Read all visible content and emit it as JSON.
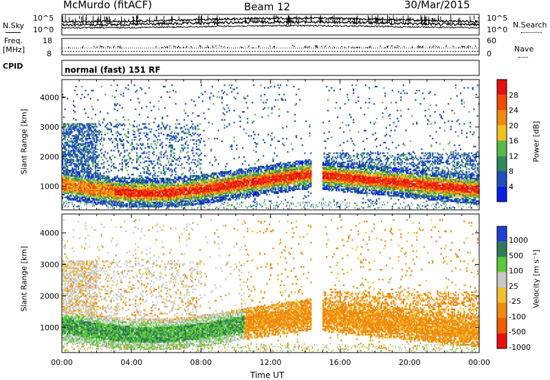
{
  "header": {
    "station": "McMurdo (fitACF)",
    "beam": "Beam 12",
    "date": "30/Mar/2015"
  },
  "top_panel": {
    "left_label_1": "N.Sky",
    "left_label_2": "Freq.",
    "left_label_3": "[MHz]",
    "left_label_4": "CPID",
    "left_ticks_upper_1": "10^5",
    "left_ticks_upper_2": "10^0",
    "left_ticks_lower_1": "18",
    "left_ticks_lower_2": "8",
    "right_ticks_upper_1": "10^5",
    "right_ticks_upper_2": "10^0",
    "right_ticks_lower_1": "60",
    "right_ticks_lower_2": "0",
    "right_label_1": "N.Search",
    "right_label_2": "Nave",
    "cpid_text": "normal (fast) 151 RF"
  },
  "colors": {
    "power": [
      "#0a1ee6",
      "#1f4fb8",
      "#2e8a5a",
      "#58b848",
      "#f0c020",
      "#f08a10",
      "#f04a00",
      "#e61010"
    ],
    "velocity": [
      "#1f3fd0",
      "#2f7a5a",
      "#5ec83a",
      "#c8c8c8",
      "#f0c030",
      "#f08a10",
      "#f05a00",
      "#e61010"
    ]
  },
  "chart_data": [
    {
      "type": "heatmap",
      "panel": "power",
      "ylabel": "Slant Range [km]",
      "ylim": [
        200,
        4600
      ],
      "yticks": [
        "1000",
        "2000",
        "3000",
        "4000"
      ],
      "xlim": [
        0,
        24
      ],
      "colorbar": {
        "label": "Power [dB]",
        "ticks": [
          "4",
          "8",
          "12",
          "16",
          "20",
          "24",
          "28"
        ],
        "range": [
          0,
          32
        ]
      },
      "features": [
        {
          "desc_value": "main band",
          "x": [
            2,
            4,
            6,
            8,
            10,
            12,
            14
          ],
          "range_center": [
            900,
            800,
            750,
            800,
            1000,
            1150,
            1350
          ]
        },
        {
          "desc_value": "band after gap",
          "x": [
            15,
            17,
            19,
            21,
            23,
            24
          ],
          "range_center": [
            1300,
            1150,
            1000,
            900,
            850,
            850
          ]
        }
      ]
    },
    {
      "type": "heatmap",
      "panel": "velocity",
      "ylabel": "Slant Range [km]",
      "ylim": [
        200,
        4600
      ],
      "yticks": [
        "1000",
        "2000",
        "3000",
        "4000"
      ],
      "xlim": [
        0,
        24
      ],
      "xticks": [
        "00:00",
        "04:00",
        "08:00",
        "12:00",
        "16:00",
        "20:00",
        "00:00"
      ],
      "xlabel": "Time UT",
      "colorbar": {
        "label": "Velocity [m s⁻¹]",
        "ticks": [
          "1000",
          "500",
          "100",
          "25",
          "-25",
          "-100",
          "-500",
          "-1000"
        ]
      }
    }
  ]
}
